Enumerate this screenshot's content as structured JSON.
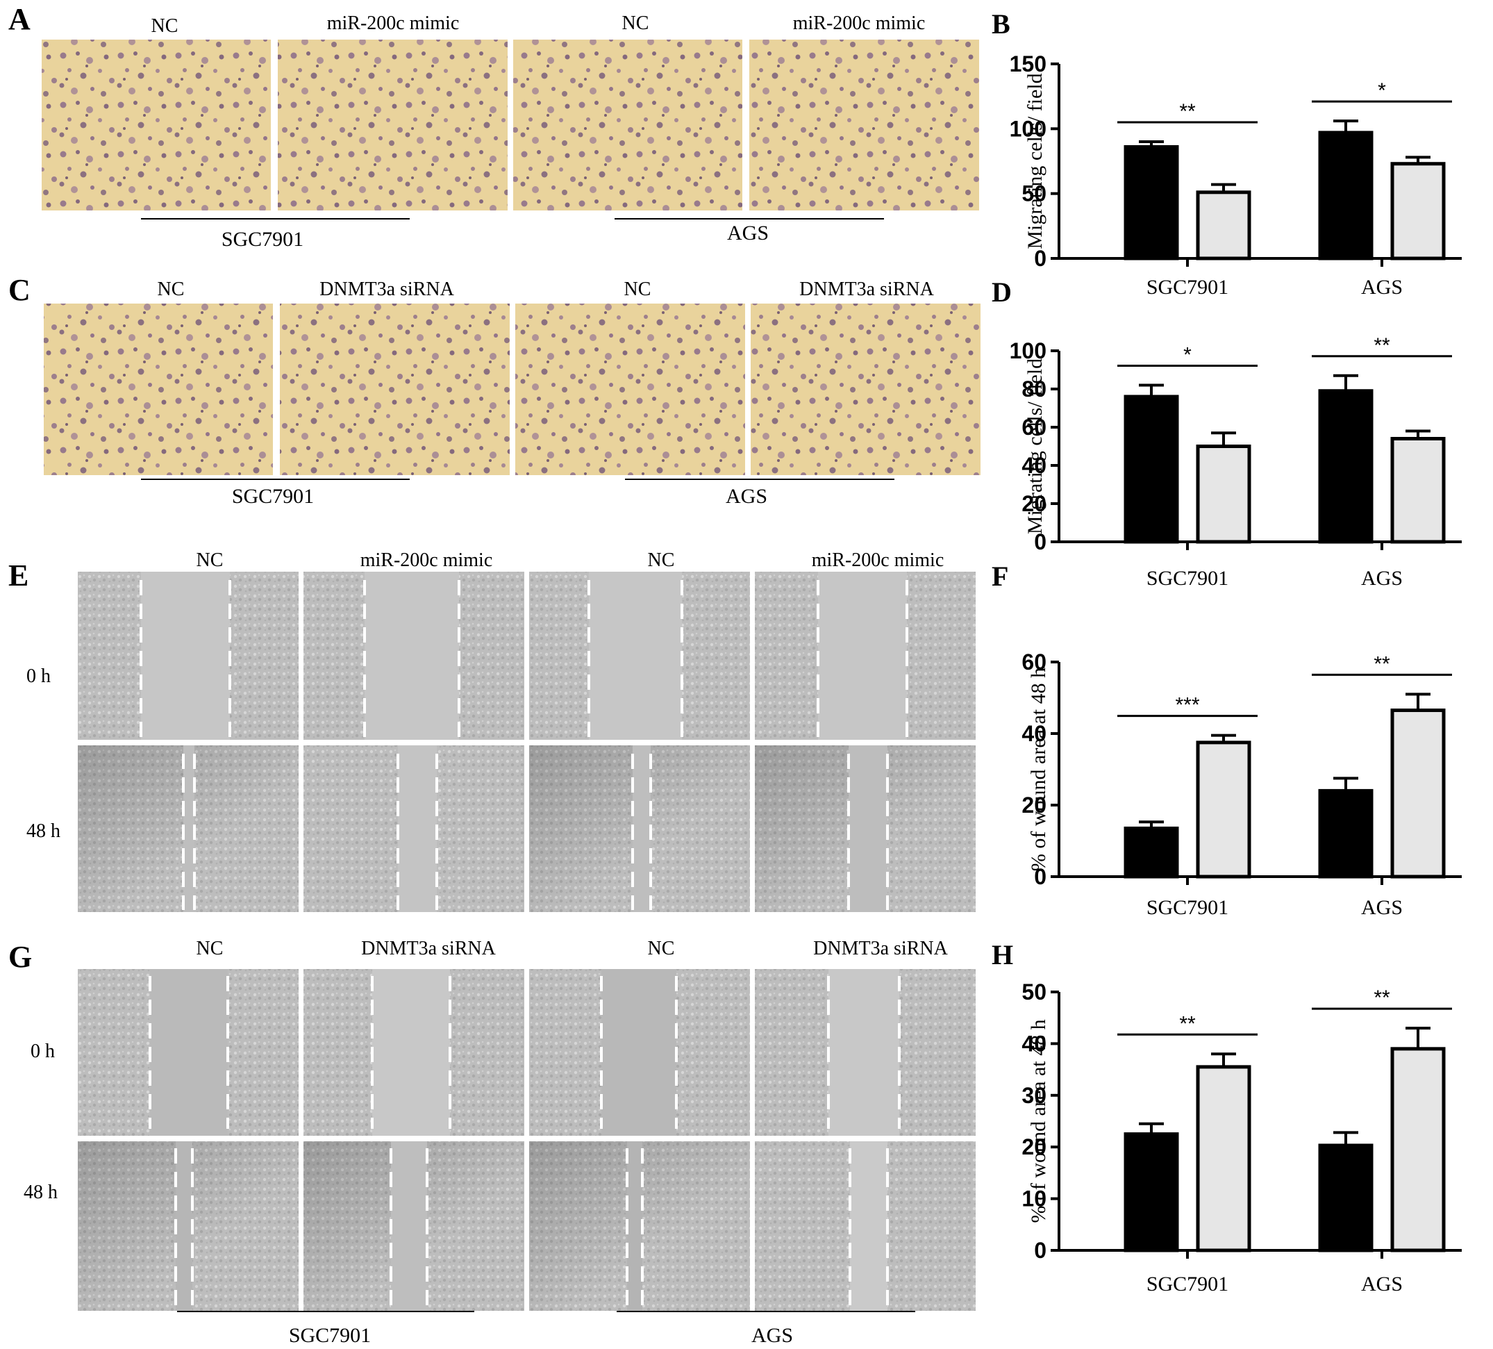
{
  "panels": [
    {
      "letter": "A",
      "type": "transwell",
      "conditions": [
        "NC",
        "miR-200c mimic",
        "NC",
        "miR-200c mimic"
      ],
      "cell_lines": [
        "SGC7901",
        "AGS"
      ]
    },
    {
      "letter": "C",
      "type": "transwell",
      "conditions": [
        "NC",
        "DNMT3a siRNA",
        "NC",
        "DNMT3a siRNA"
      ],
      "cell_lines": [
        "SGC7901",
        "AGS"
      ]
    },
    {
      "letter": "E",
      "type": "wound",
      "conditions": [
        "NC",
        "miR-200c mimic",
        "NC",
        "miR-200c mimic"
      ],
      "time_labels": [
        "0 h",
        "48 h"
      ]
    },
    {
      "letter": "G",
      "type": "wound",
      "conditions": [
        "NC",
        "DNMT3a siRNA",
        "NC",
        "DNMT3a siRNA"
      ],
      "time_labels": [
        "0 h",
        "48 h"
      ],
      "cell_lines": [
        "SGC7901",
        "AGS"
      ]
    }
  ],
  "colors": {
    "series_control": "#000000",
    "series_treatment": "#e6e6e6",
    "transwell_bg": "#e9d39c",
    "transwell_cell": "#7d5c86",
    "wound_bg": "#c4c4c4"
  },
  "chart_data": [
    {
      "panel": "B",
      "type": "bar",
      "categories": [
        "SGC7901",
        "AGS"
      ],
      "ylabel": "Migrating cells/ field",
      "ylim": [
        0,
        150
      ],
      "yticks": [
        0,
        50,
        100,
        150
      ],
      "series": [
        {
          "values": [
            86,
            97
          ],
          "errors": [
            4,
            9
          ],
          "color": "#000000"
        },
        {
          "values": [
            51,
            73
          ],
          "errors": [
            6,
            5
          ],
          "color": "#e6e6e6"
        }
      ],
      "significance": [
        "**",
        "*"
      ]
    },
    {
      "panel": "D",
      "type": "bar",
      "categories": [
        "SGC7901",
        "AGS"
      ],
      "ylabel": "Migrating cells/ field",
      "ylim": [
        0,
        100
      ],
      "yticks": [
        0,
        20,
        40,
        60,
        80,
        100
      ],
      "series": [
        {
          "values": [
            76,
            79
          ],
          "errors": [
            6,
            8
          ],
          "color": "#000000"
        },
        {
          "values": [
            50,
            54
          ],
          "errors": [
            7,
            4
          ],
          "color": "#e6e6e6"
        }
      ],
      "significance": [
        "*",
        "**"
      ]
    },
    {
      "panel": "F",
      "type": "bar",
      "categories": [
        "SGC7901",
        "AGS"
      ],
      "ylabel": "% of wound area at 48 h",
      "ylim": [
        0,
        60
      ],
      "yticks": [
        0,
        20,
        40,
        60
      ],
      "series": [
        {
          "values": [
            13.5,
            24
          ],
          "errors": [
            1.8,
            3.5
          ],
          "color": "#000000"
        },
        {
          "values": [
            37.5,
            46.5
          ],
          "errors": [
            2,
            4.5
          ],
          "color": "#e6e6e6"
        }
      ],
      "significance": [
        "***",
        "**"
      ]
    },
    {
      "panel": "H",
      "type": "bar",
      "categories": [
        "SGC7901",
        "AGS"
      ],
      "ylabel": "% of wound area at 48 h",
      "ylim": [
        0,
        50
      ],
      "yticks": [
        0,
        10,
        20,
        30,
        40,
        50
      ],
      "series": [
        {
          "values": [
            22.5,
            20.3
          ],
          "errors": [
            2,
            2.5
          ],
          "color": "#000000"
        },
        {
          "values": [
            35.5,
            39
          ],
          "errors": [
            2.5,
            4
          ],
          "color": "#e6e6e6"
        }
      ],
      "significance": [
        "**",
        "**"
      ]
    }
  ]
}
